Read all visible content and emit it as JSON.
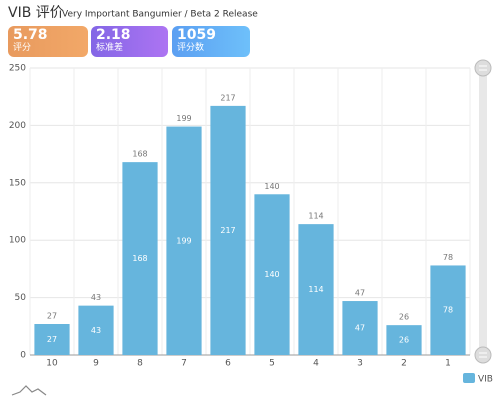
{
  "stats": [
    {
      "value": "5.78",
      "label": "评分"
    },
    {
      "value": "2.18",
      "label": "标准差"
    },
    {
      "value": "1059",
      "label": "评分数"
    }
  ],
  "chart_data": {
    "type": "bar",
    "title": "VIB 评价",
    "subtitle": "Very Important Bangumier / Beta 2 Release",
    "categories": [
      "10",
      "9",
      "8",
      "7",
      "6",
      "5",
      "4",
      "3",
      "2",
      "1"
    ],
    "series": [
      {
        "name": "VIB",
        "color": "#66b5dd",
        "values": [
          27,
          43,
          168,
          199,
          217,
          140,
          114,
          47,
          26,
          78
        ]
      }
    ],
    "ylim": [
      0,
      250
    ],
    "yticks": [
      0,
      50,
      100,
      150,
      200,
      250
    ],
    "grid": true,
    "legend": "bottom-right"
  }
}
